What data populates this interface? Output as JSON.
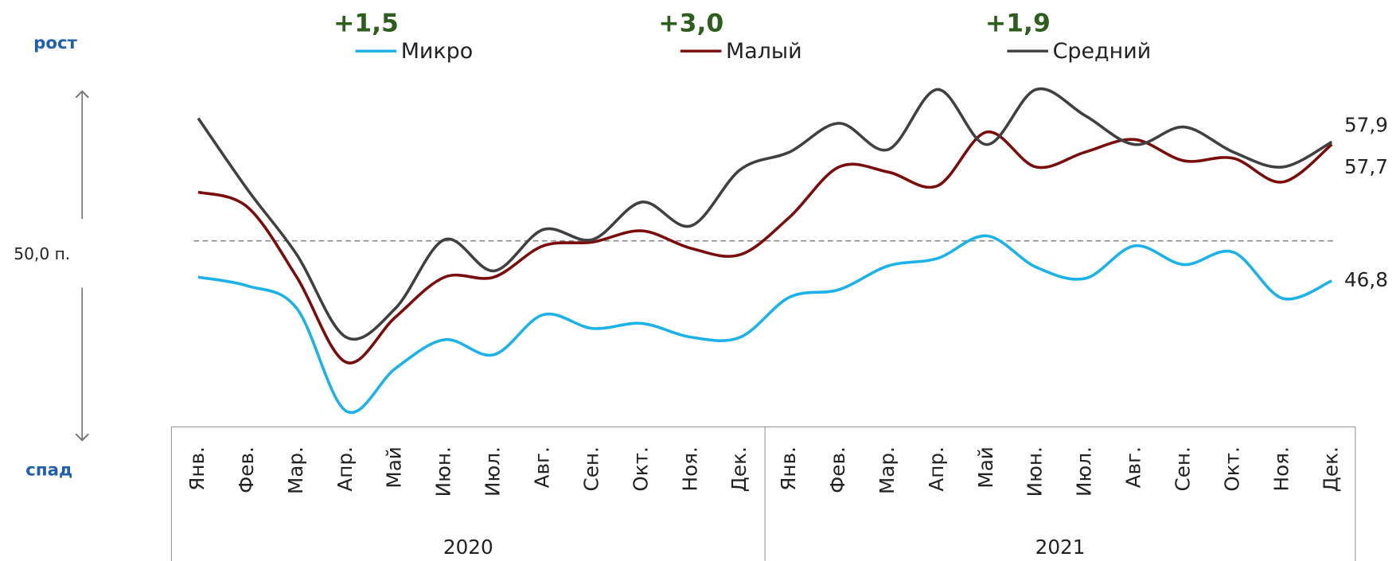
{
  "chart_data": {
    "type": "line",
    "categories": [
      "Янв.",
      "Фев.",
      "Мар.",
      "Апр.",
      "Май",
      "Июн.",
      "Июл.",
      "Авг.",
      "Сен.",
      "Окт.",
      "Ноя.",
      "Дек.",
      "Янв.",
      "Фев.",
      "Мар.",
      "Апр.",
      "Май",
      "Июн.",
      "Июл.",
      "Авг.",
      "Сен.",
      "Окт.",
      "Ноя.",
      "Дек."
    ],
    "groups": [
      {
        "label": "2020",
        "span": 12
      },
      {
        "label": "2021",
        "span": 12
      }
    ],
    "axis_top_label": "рост",
    "axis_bottom_label": "спад",
    "reference_line": {
      "value": 50,
      "label": "50,0 п."
    },
    "ylim": [
      35.7,
      62.1
    ],
    "series": [
      {
        "name": "Микро",
        "color": "#1ab2e8",
        "change_label": "+1,5",
        "end_label": "46,8",
        "values": [
          47.1,
          46.4,
          44.6,
          36.4,
          39.8,
          42.1,
          40.9,
          44.1,
          43.0,
          43.4,
          42.3,
          42.3,
          45.5,
          46.1,
          48.0,
          48.6,
          50.4,
          47.9,
          47.0,
          49.6,
          48.1,
          49.1,
          45.4,
          46.8
        ]
      },
      {
        "name": "Малый",
        "color": "#7a0c0c",
        "change_label": "+3,0",
        "end_label": "57,7",
        "values": [
          53.9,
          52.7,
          47.1,
          40.3,
          43.9,
          47.1,
          47.1,
          49.6,
          49.9,
          50.8,
          49.4,
          48.9,
          51.9,
          55.9,
          55.5,
          54.4,
          58.7,
          55.9,
          57.1,
          58.1,
          56.4,
          56.6,
          54.7,
          57.7
        ]
      },
      {
        "name": "Средний",
        "color": "#404040",
        "change_label": "+1,9",
        "end_label": "57,9",
        "values": [
          59.8,
          54.1,
          48.9,
          42.3,
          44.6,
          50.1,
          47.6,
          50.9,
          50.1,
          53.1,
          51.2,
          55.7,
          57.1,
          59.4,
          57.3,
          62.1,
          57.7,
          62.1,
          60.0,
          57.7,
          59.1,
          57.1,
          55.9,
          57.9
        ]
      }
    ]
  }
}
